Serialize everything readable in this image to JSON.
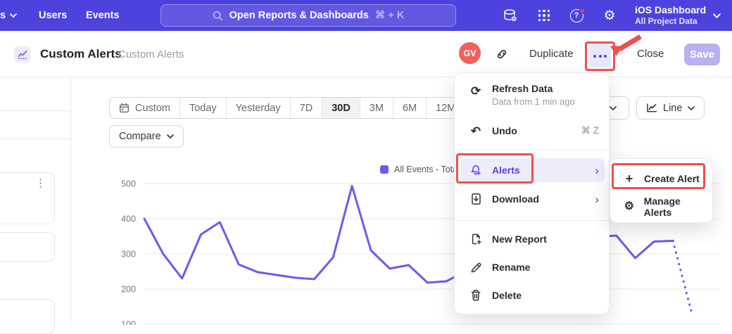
{
  "topnav": {
    "partial_nav_label": "s",
    "users_label": "Users",
    "events_label": "Events",
    "search_placeholder": "Open Reports & Dashboards",
    "search_shortcut": "⌘ + K",
    "project_name": "iOS Dashboard",
    "project_scope": "All Project Data"
  },
  "header": {
    "title": "Custom Alerts",
    "breadcrumb": "Custom Alerts",
    "avatar_initials": "GV",
    "duplicate_label": "Duplicate",
    "close_label": "Close",
    "save_label": "Save"
  },
  "toolbar": {
    "date_ranges": [
      "Custom",
      "Today",
      "Yesterday",
      "7D",
      "30D",
      "3M",
      "6M",
      "12M"
    ],
    "selected_range": "30D",
    "compare_label": "Compare",
    "chart_type_label": "Line"
  },
  "menu": {
    "refresh_label": "Refresh Data",
    "refresh_subtitle": "Data from 1 min ago",
    "undo_label": "Undo",
    "undo_shortcut": "⌘ Z",
    "alerts_label": "Alerts",
    "download_label": "Download",
    "new_report_label": "New Report",
    "rename_label": "Rename",
    "delete_label": "Delete"
  },
  "submenu": {
    "create_alert_label": "Create Alert",
    "manage_alerts_label": "Manage Alerts"
  },
  "chart_data": {
    "type": "line",
    "title": "",
    "legend_position": "top",
    "grid": true,
    "ylim": [
      100,
      500
    ],
    "yticks": [
      500,
      400,
      300,
      200,
      100
    ],
    "line_color": "#7457e9",
    "series": [
      {
        "name": "All Events - Total",
        "values": [
          400,
          300,
          230,
          355,
          390,
          270,
          248,
          240,
          232,
          228,
          290,
          493,
          310,
          258,
          268,
          218,
          222,
          250,
          270,
          285,
          300,
          315,
          330,
          345,
          348,
          352,
          288,
          335,
          337,
          130
        ],
        "dotted_tail_segments": 1
      }
    ]
  },
  "colors": {
    "nav_bg": "#4c43df",
    "accent_purple": "#5143d9",
    "annotation_red": "#ef4e4e",
    "avatar_bg": "#f1615c",
    "save_bg": "#b7b1f1",
    "line_color": "#7457e9"
  }
}
